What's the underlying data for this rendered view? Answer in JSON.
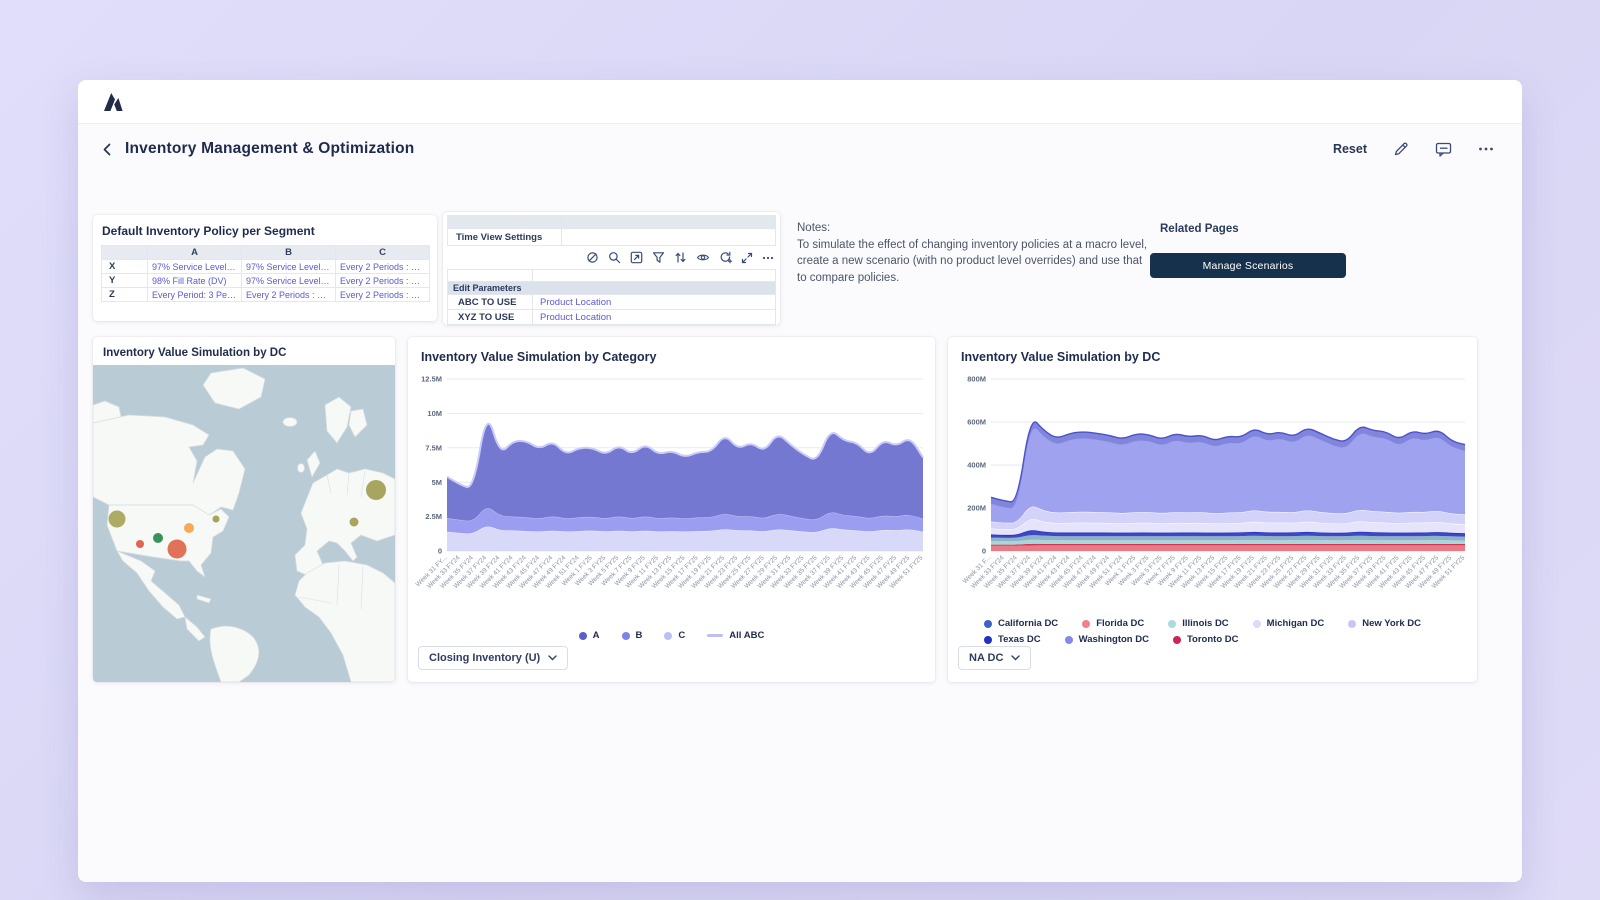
{
  "header": {
    "title": "Inventory Management & Optimization",
    "reset_label": "Reset"
  },
  "policy_panel": {
    "title": "Default Inventory Policy per Segment",
    "columns": [
      "",
      "A",
      "B",
      "C"
    ],
    "rows": [
      {
        "label": "X",
        "cells": [
          "97% Service Level (DV)",
          "97% Service Level (DV)",
          "Every 2 Periods : 4 Perio..."
        ]
      },
      {
        "label": "Y",
        "cells": [
          "98% Fill Rate (DV)",
          "97% Service Level (DV) :...",
          "Every 2 Periods : 4 Perio..."
        ]
      },
      {
        "label": "Z",
        "cells": [
          "Every Period: 3 Periods ...",
          "Every 2 Periods : 4 Perio...",
          "Every 2 Periods : 4 Perio..."
        ]
      }
    ]
  },
  "settings_panel": {
    "time_view_label": "Time View Settings",
    "edit_parameters_label": "Edit Parameters",
    "params": [
      {
        "label": "ABC TO USE",
        "value": "Product Location"
      },
      {
        "label": "XYZ TO USE",
        "value": "Product Location"
      }
    ],
    "toolbar_icons": [
      "conditional-format-off",
      "search",
      "drill-down",
      "filter",
      "sort",
      "show-hide",
      "refresh-add",
      "expand",
      "more"
    ]
  },
  "notes": {
    "heading": "Notes:",
    "body": "To simulate the effect of changing inventory policies at a macro level, create a new scenario (with no product level overrides) and use that to compare policies."
  },
  "related_pages": {
    "title": "Related Pages",
    "button_label": "Manage Scenarios"
  },
  "map_panel": {
    "title": "Inventory Value Simulation by DC",
    "water_color": "#b9ccd5",
    "land_color": "#f7f9f6",
    "border_color": "#d7dde1",
    "bubbles": [
      {
        "x": 24,
        "y": 154,
        "r": 8.5,
        "color": "#a9a75c"
      },
      {
        "x": 47,
        "y": 179,
        "r": 4,
        "color": "#e25c49"
      },
      {
        "x": 65,
        "y": 173,
        "r": 5,
        "color": "#2e8b57"
      },
      {
        "x": 96,
        "y": 163,
        "r": 5,
        "color": "#f5a54d"
      },
      {
        "x": 84,
        "y": 184,
        "r": 9.5,
        "color": "#df6a4f"
      },
      {
        "x": 123,
        "y": 154,
        "r": 3.5,
        "color": "#9ea050"
      },
      {
        "x": 283,
        "y": 125,
        "r": 10,
        "color": "#a3a155"
      },
      {
        "x": 261,
        "y": 157,
        "r": 4.5,
        "color": "#a3a155"
      }
    ]
  },
  "category_panel": {
    "dropdown_label": "Closing Inventory (U)"
  },
  "dc_panel": {
    "dropdown_label": "NA DC"
  },
  "chart_data": [
    {
      "type": "area",
      "stacked": true,
      "title": "Inventory Value Simulation by Category",
      "unit": "millions",
      "ylim": [
        0,
        12.5
      ],
      "grid": true,
      "legend_position": "bottom-center",
      "y_ticks": [
        {
          "label": "0",
          "v": 0
        },
        {
          "label": "2.5M",
          "v": 2.5
        },
        {
          "label": "5M",
          "v": 5
        },
        {
          "label": "7.5M",
          "v": 7.5
        },
        {
          "label": "10M",
          "v": 10
        },
        {
          "label": "12.5M",
          "v": 12.5
        }
      ],
      "x_labels": [
        "Week 31 FY...",
        "Week 33 FY24",
        "Week 35 FY24",
        "Week 37 FY24",
        "Week 39 FY24",
        "Week 41 FY24",
        "Week 43 FY24",
        "Week 45 FY24",
        "Week 47 FY24",
        "Week 49 FY24",
        "Week 51 FY24",
        "Week 1 FY25",
        "Week 3 FY25",
        "Week 5 FY25",
        "Week 7 FY25",
        "Week 9 FY25",
        "Week 11 FY25",
        "Week 13 FY25",
        "Week 15 FY25",
        "Week 17 FY25",
        "Week 19 FY25",
        "Week 21 FY25",
        "Week 23 FY25",
        "Week 25 FY25",
        "Week 27 FY25",
        "Week 29 FY25",
        "Week 31 FY25",
        "Week 33 FY25",
        "Week 35 FY25",
        "Week 37 FY25",
        "Week 39 FY25",
        "Week 41 FY25",
        "Week 43 FY25",
        "Week 45 FY25",
        "Week 47 FY25",
        "Week 49 FY25",
        "Week 51 FY25"
      ],
      "series": [
        {
          "name": "C",
          "fill": "#d8d9f8",
          "stroke": "#edeefc",
          "stroke_width": 1,
          "values": [
            1.4,
            1.3,
            1.25,
            1.9,
            1.5,
            1.5,
            1.45,
            1.4,
            1.5,
            1.4,
            1.45,
            1.5,
            1.4,
            1.5,
            1.4,
            1.5,
            1.4,
            1.45,
            1.4,
            1.45,
            1.45,
            1.6,
            1.5,
            1.5,
            1.4,
            1.6,
            1.5,
            1.4,
            1.35,
            1.7,
            1.55,
            1.5,
            1.4,
            1.55,
            1.5,
            1.6,
            1.4
          ]
        },
        {
          "name": "B",
          "fill": "#9b9ef0",
          "stroke": "#c4c6f8",
          "stroke_width": 1,
          "values": [
            1.0,
            0.95,
            0.9,
            1.45,
            1.05,
            1.0,
            1.0,
            0.95,
            1.05,
            0.95,
            1.0,
            1.0,
            0.95,
            1.05,
            0.95,
            1.05,
            0.95,
            1.0,
            0.95,
            1.0,
            1.0,
            1.15,
            1.0,
            1.05,
            0.95,
            1.15,
            1.05,
            0.95,
            0.9,
            1.2,
            1.05,
            1.05,
            0.95,
            1.05,
            1.0,
            1.1,
            0.95
          ]
        },
        {
          "name": "A",
          "fill": "#7478d0",
          "stroke": "",
          "stroke_width": 0,
          "values": [
            3.0,
            2.55,
            2.35,
            6.95,
            4.45,
            5.5,
            5.55,
            5.05,
            5.45,
            4.65,
            5.05,
            5.0,
            4.65,
            5.15,
            4.65,
            5.25,
            4.65,
            4.85,
            4.45,
            4.75,
            4.75,
            5.75,
            4.9,
            5.35,
            4.85,
            5.85,
            5.15,
            4.65,
            4.25,
            6.0,
            5.4,
            5.35,
            4.55,
            5.5,
            5.1,
            5.6,
            4.45
          ]
        }
      ],
      "total_line": {
        "name": "All ABC",
        "color": "#c9cbf8",
        "width": 2
      },
      "legend": [
        {
          "label": "A",
          "color": "#5a5fcb",
          "type": "dot"
        },
        {
          "label": "B",
          "color": "#7d81e9",
          "type": "dot"
        },
        {
          "label": "C",
          "color": "#bdbff4",
          "type": "dot"
        },
        {
          "label": "All ABC",
          "color": "#bdbff4",
          "type": "line"
        }
      ]
    },
    {
      "type": "area",
      "stacked": true,
      "title": "Inventory Value Simulation by DC",
      "unit": "millions",
      "ylim": [
        0,
        800
      ],
      "grid": true,
      "legend_position": "bottom-left",
      "y_ticks": [
        {
          "label": "0",
          "v": 0
        },
        {
          "label": "200M",
          "v": 200
        },
        {
          "label": "400M",
          "v": 400
        },
        {
          "label": "600M",
          "v": 600
        },
        {
          "label": "800M",
          "v": 800
        }
      ],
      "x_labels": [
        "Week 31 F...",
        "Week 33 FY24",
        "Week 35 FY24",
        "Week 37 FY24",
        "Week 39 FY24",
        "Week 41 FY24",
        "Week 43 FY24",
        "Week 45 FY24",
        "Week 47 FY24",
        "Week 49 FY24",
        "Week 51 FY24",
        "Week 1 FY25",
        "Week 3 FY25",
        "Week 5 FY25",
        "Week 7 FY25",
        "Week 9 FY25",
        "Week 11 FY25",
        "Week 13 FY25",
        "Week 15 FY25",
        "Week 17 FY25",
        "Week 19 FY25",
        "Week 21 FY25",
        "Week 23 FY25",
        "Week 25 FY25",
        "Week 27 FY25",
        "Week 29 FY25",
        "Week 31 FY25",
        "Week 33 FY25",
        "Week 35 FY25",
        "Week 37 FY25",
        "Week 39 FY25",
        "Week 41 FY25",
        "Week 43 FY25",
        "Week 45 FY25",
        "Week 47 FY25",
        "Week 49 FY25",
        "Week 51 FY25"
      ],
      "series": [
        {
          "name": "Florida DC",
          "fill": "#e97b86",
          "stroke": "",
          "stroke_width": 0,
          "values": [
            24,
            24,
            24,
            26,
            26,
            26,
            26,
            26,
            26,
            26,
            26,
            26,
            26,
            26,
            26,
            26,
            26,
            26,
            26,
            26,
            26,
            26,
            26,
            26,
            26,
            26,
            26,
            26,
            26,
            26,
            26,
            26,
            26,
            26,
            26,
            26,
            26
          ]
        },
        {
          "name": "Toronto DC",
          "fill": "#d23558",
          "stroke": "",
          "stroke_width": 0,
          "values": [
            6,
            6,
            6,
            8,
            7,
            7,
            7,
            7,
            7,
            7,
            7,
            7,
            7,
            7,
            7,
            7,
            7,
            7,
            7,
            7,
            7,
            7,
            7,
            7,
            7,
            7,
            7,
            7,
            7,
            7,
            7,
            7,
            7,
            7,
            7,
            7,
            7
          ]
        },
        {
          "name": "Illinois DC",
          "fill": "#a5d8db",
          "stroke": "",
          "stroke_width": 0,
          "values": [
            15,
            15,
            15,
            20,
            18,
            17,
            17,
            17,
            17,
            17,
            17,
            17,
            17,
            17,
            17,
            17,
            17,
            17,
            17,
            17,
            18,
            17,
            17,
            17,
            18,
            17,
            17,
            17,
            18,
            17,
            17,
            17,
            17,
            17,
            18,
            17,
            16
          ]
        },
        {
          "name": "California DC",
          "fill": "#8fb2c7",
          "stroke": "",
          "stroke_width": 0,
          "values": [
            17,
            16,
            16,
            22,
            20,
            19,
            19,
            19,
            19,
            19,
            19,
            19,
            19,
            19,
            19,
            19,
            19,
            19,
            19,
            19,
            20,
            19,
            19,
            19,
            20,
            19,
            19,
            19,
            20,
            19,
            19,
            19,
            19,
            19,
            20,
            18,
            18
          ]
        },
        {
          "name": "Texas DC",
          "fill": "#3d49c4",
          "stroke": "#2030b8",
          "stroke_width": 1.4,
          "values": [
            15,
            14,
            14,
            25,
            18,
            17,
            17,
            17,
            17,
            17,
            16,
            17,
            17,
            16,
            17,
            17,
            17,
            16,
            17,
            17,
            19,
            17,
            17,
            17,
            19,
            17,
            16,
            16,
            20,
            18,
            17,
            16,
            17,
            17,
            18,
            16,
            16
          ]
        },
        {
          "name": "Michigan DC",
          "fill": "#e6e4fb",
          "stroke": "#ffffff",
          "stroke_width": 1,
          "values": [
            28,
            26,
            26,
            55,
            46,
            43,
            45,
            46,
            45,
            44,
            43,
            45,
            45,
            43,
            45,
            44,
            45,
            42,
            44,
            44,
            48,
            45,
            46,
            44,
            48,
            45,
            43,
            42,
            49,
            46,
            46,
            43,
            46,
            45,
            47,
            42,
            41
          ]
        },
        {
          "name": "New York DC",
          "fill": "#d3d2f8",
          "stroke": "#ffffff",
          "stroke_width": 1,
          "values": [
            32,
            30,
            30,
            62,
            52,
            48,
            50,
            51,
            50,
            49,
            48,
            50,
            50,
            48,
            50,
            49,
            50,
            47,
            49,
            49,
            53,
            50,
            51,
            49,
            53,
            50,
            48,
            47,
            54,
            51,
            51,
            48,
            51,
            50,
            52,
            47,
            46
          ]
        },
        {
          "name": "Washington DC",
          "fill": "#9fa2ee",
          "stroke": "",
          "stroke_width": 0,
          "values": [
            113,
            101,
            95,
            412,
            373,
            345,
            367,
            372,
            367,
            359,
            344,
            364,
            361,
            342,
            367,
            351,
            359,
            338,
            356,
            349,
            381,
            359,
            372,
            351,
            384,
            367,
            344,
            331,
            391,
            376,
            372,
            342,
            377,
            361,
            377,
            337,
            325
          ]
        }
      ],
      "cap": {
        "color": "#7b7ed7",
        "opacity": 0.8,
        "thickness": 30
      },
      "total_line": {
        "name": "",
        "color": "#4a52c8",
        "width": 1.4
      },
      "legend": [
        {
          "label": "California DC",
          "color": "#3e63c6",
          "type": "dot"
        },
        {
          "label": "Florida DC",
          "color": "#f2808a",
          "type": "dot"
        },
        {
          "label": "Illinois DC",
          "color": "#a9dcdf",
          "type": "dot"
        },
        {
          "label": "Michigan DC",
          "color": "#dcdaf9",
          "type": "dot"
        },
        {
          "label": "New York DC",
          "color": "#c8c6f6",
          "type": "dot"
        },
        {
          "label": "Texas DC",
          "color": "#2430c4",
          "type": "dot"
        },
        {
          "label": "Washington DC",
          "color": "#8588ea",
          "type": "dot"
        },
        {
          "label": "Toronto DC",
          "color": "#ce2355",
          "type": "dot"
        }
      ]
    }
  ]
}
